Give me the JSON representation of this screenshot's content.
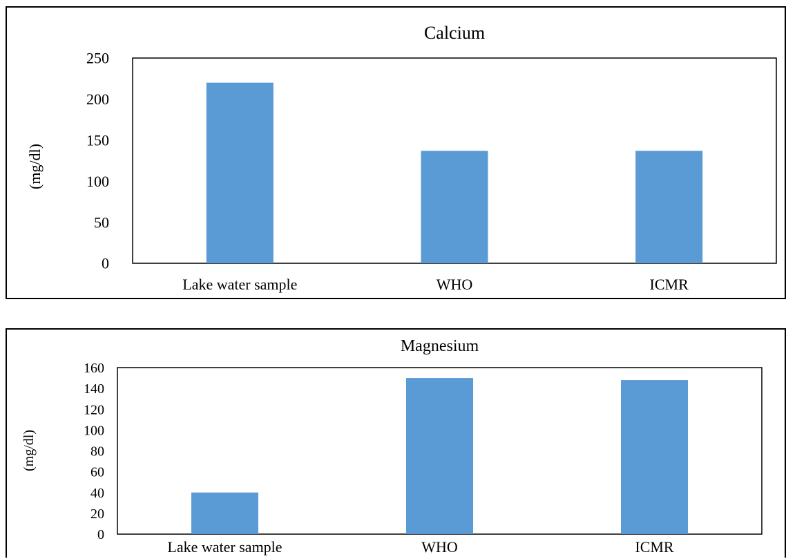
{
  "chart_data": [
    {
      "type": "bar",
      "title": "Calcium",
      "ylabel": "(mg/dl)",
      "categories": [
        "Lake water sample",
        "WHO",
        "ICMR"
      ],
      "values": [
        220,
        137,
        137
      ],
      "ylim": [
        0,
        250
      ],
      "yticks": [
        0,
        50,
        100,
        150,
        200,
        250
      ],
      "bar_color": "#5b9bd5",
      "grid": false,
      "legend": "none"
    },
    {
      "type": "bar",
      "title": "Magnesium",
      "ylabel": "(mg/dl)",
      "categories": [
        "Lake water sample",
        "WHO",
        "ICMR"
      ],
      "values": [
        40,
        150,
        148
      ],
      "ylim": [
        0,
        160
      ],
      "yticks": [
        0,
        20,
        40,
        60,
        80,
        100,
        120,
        140,
        160
      ],
      "bar_color": "#5b9bd5",
      "grid": false,
      "legend": "none"
    }
  ]
}
